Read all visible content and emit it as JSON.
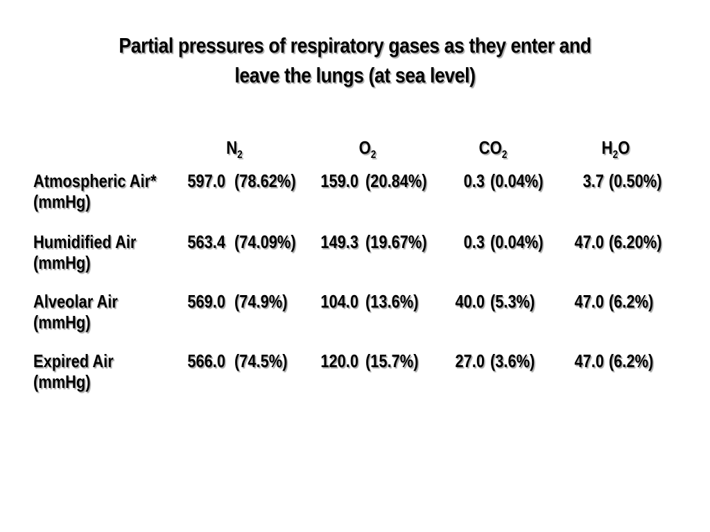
{
  "slide": {
    "title_lines": [
      "Partial pressures of respiratory gases as they enter and",
      "leave the lungs (at sea level)"
    ]
  },
  "table": {
    "columns": [
      {
        "id": "n2",
        "base": "N",
        "sub": "2",
        "suffix": ""
      },
      {
        "id": "o2",
        "base": "O",
        "sub": "2",
        "suffix": ""
      },
      {
        "id": "co2",
        "base": "CO",
        "sub": "2",
        "suffix": ""
      },
      {
        "id": "h2o",
        "base": "H",
        "sub": "2",
        "suffix": "O"
      }
    ],
    "rows": [
      {
        "name": "Atmospheric Air*",
        "unit": "(mmHg)",
        "values": [
          {
            "num": "597.0",
            "pct": "(78.62%)"
          },
          {
            "num": "159.0",
            "pct": "(20.84%)"
          },
          {
            "num": "0.3",
            "pct": "(0.04%)"
          },
          {
            "num": "3.7",
            "pct": "(0.50%)"
          }
        ]
      },
      {
        "name": "Humidified Air",
        "unit": "(mmHg)",
        "values": [
          {
            "num": "563.4",
            "pct": "(74.09%)"
          },
          {
            "num": "149.3",
            "pct": "(19.67%)"
          },
          {
            "num": "0.3",
            "pct": "(0.04%)"
          },
          {
            "num": "47.0",
            "pct": "(6.20%)"
          }
        ]
      },
      {
        "name": "Alveolar Air",
        "unit": "(mmHg)",
        "values": [
          {
            "num": "569.0",
            "pct": "(74.9%)"
          },
          {
            "num": "104.0",
            "pct": "(13.6%)"
          },
          {
            "num": "40.0",
            "pct": "(5.3%)"
          },
          {
            "num": "47.0",
            "pct": "(6.2%)"
          }
        ]
      },
      {
        "name": "Expired Air",
        "unit": "(mmHg)",
        "values": [
          {
            "num": "566.0",
            "pct": "(74.5%)"
          },
          {
            "num": "120.0",
            "pct": "(15.7%)"
          },
          {
            "num": "27.0",
            "pct": "(3.6%)"
          },
          {
            "num": "47.0",
            "pct": "(6.2%)"
          }
        ]
      }
    ]
  },
  "colors": {
    "background": "#ffffff",
    "text": "#000000",
    "text_shadow": "#aaaaaa"
  }
}
